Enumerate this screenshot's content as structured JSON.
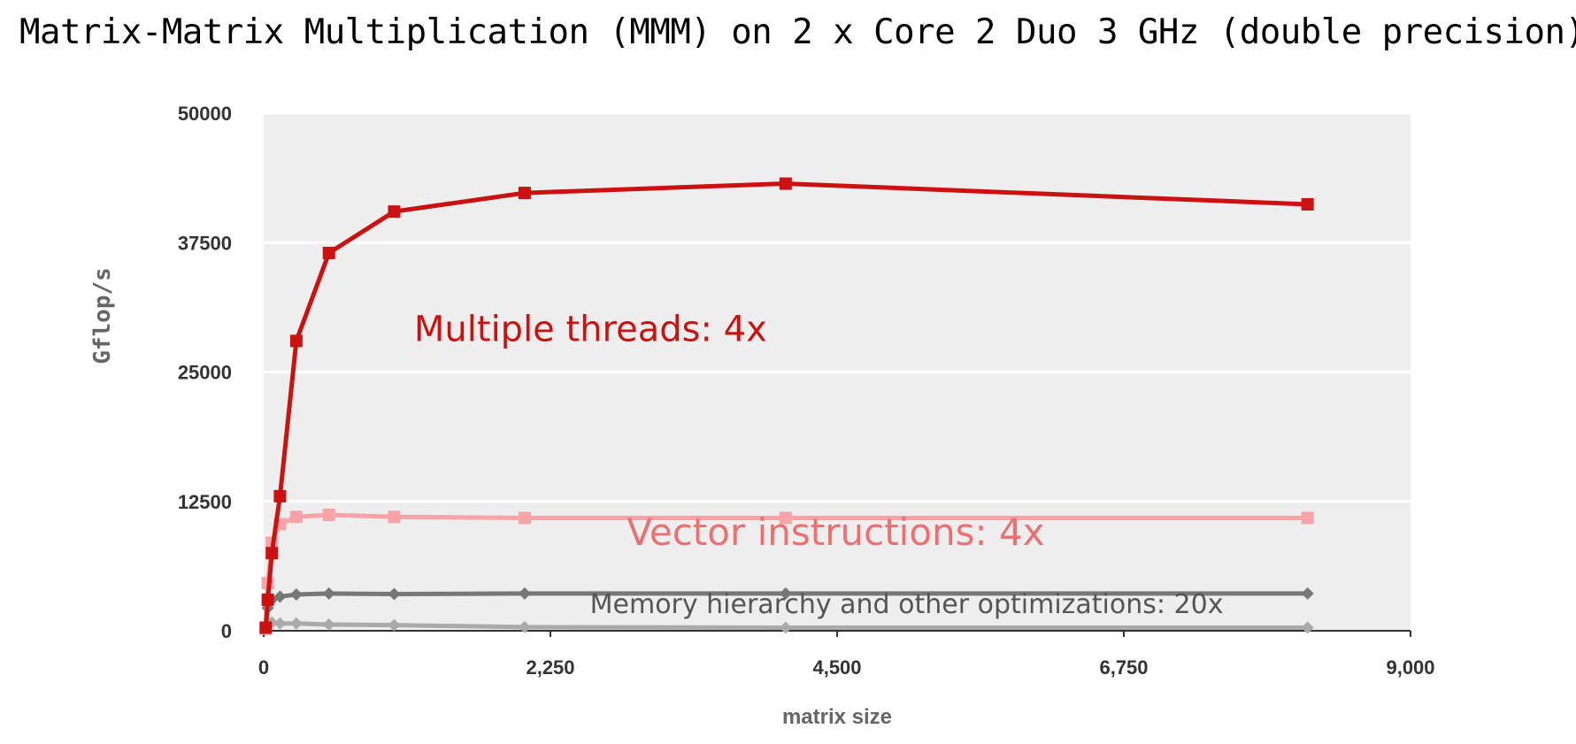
{
  "chart_data": {
    "type": "line",
    "title": "Matrix-Matrix Multiplication (MMM) on 2 x Core 2 Duo 3 GHz (double precision)",
    "xlabel": "matrix size",
    "ylabel": "Gflop/s",
    "xlim": [
      0,
      9000
    ],
    "ylim": [
      0,
      50000
    ],
    "xticks": [
      0,
      2250,
      4500,
      6750,
      9000
    ],
    "xtick_labels": [
      "0",
      "2,250",
      "4,500",
      "6,750",
      "9,000"
    ],
    "yticks": [
      0,
      12500,
      25000,
      37500,
      50000
    ],
    "ytick_labels": [
      "0",
      "12500",
      "25000",
      "37500",
      "50000"
    ],
    "grid": true,
    "series": [
      {
        "color": "#cc1111",
        "marker": "square",
        "x": [
          16,
          32,
          64,
          128,
          256,
          512,
          1024,
          2048,
          4096,
          8192
        ],
        "y": [
          300,
          3000,
          7500,
          13000,
          28000,
          36500,
          40500,
          42300,
          43200,
          41200
        ]
      },
      {
        "color": "#f7a3a8",
        "marker": "square",
        "x": [
          16,
          32,
          64,
          128,
          256,
          512,
          1024,
          2048,
          4096,
          8192
        ],
        "y": [
          200,
          4600,
          8500,
          10300,
          11000,
          11200,
          11000,
          10900,
          10900,
          10900
        ]
      },
      {
        "color": "#777777",
        "marker": "diamond",
        "x": [
          16,
          32,
          64,
          128,
          256,
          512,
          1024,
          2048,
          4096,
          8192
        ],
        "y": [
          300,
          2200,
          3000,
          3300,
          3500,
          3600,
          3550,
          3600,
          3600,
          3600
        ]
      },
      {
        "color": "#aaaaaa",
        "marker": "diamond",
        "x": [
          16,
          32,
          64,
          128,
          256,
          512,
          1024,
          2048,
          4096,
          8192
        ],
        "y": [
          100,
          700,
          800,
          700,
          700,
          600,
          550,
          350,
          300,
          300
        ]
      }
    ],
    "annotations": [
      {
        "text": "Multiple threads: 4x",
        "color": "#cc1111",
        "x": 1180,
        "y": 28000
      },
      {
        "text": "Vector instructions: 4x",
        "color": "#ee6f6f",
        "x": 2850,
        "y": 8300
      },
      {
        "text": "Memory hierarchy and other optimizations: 20x",
        "color": "#555555",
        "x": 2560,
        "y": 1700
      }
    ]
  }
}
